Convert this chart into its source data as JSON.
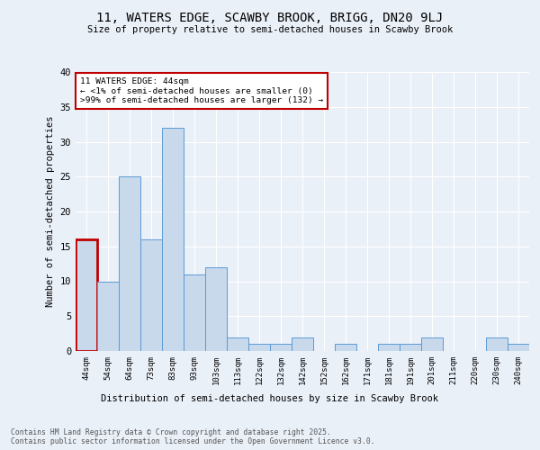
{
  "title_line1": "11, WATERS EDGE, SCAWBY BROOK, BRIGG, DN20 9LJ",
  "title_line2": "Size of property relative to semi-detached houses in Scawby Brook",
  "xlabel": "Distribution of semi-detached houses by size in Scawby Brook",
  "ylabel": "Number of semi-detached properties",
  "bar_color": "#c8d9ec",
  "bar_edge_color": "#5b9bd5",
  "highlight_color": "#c00000",
  "categories": [
    "44sqm",
    "54sqm",
    "64sqm",
    "73sqm",
    "83sqm",
    "93sqm",
    "103sqm",
    "113sqm",
    "122sqm",
    "132sqm",
    "142sqm",
    "152sqm",
    "162sqm",
    "171sqm",
    "181sqm",
    "191sqm",
    "201sqm",
    "211sqm",
    "220sqm",
    "230sqm",
    "240sqm"
  ],
  "values": [
    16,
    10,
    25,
    16,
    32,
    11,
    12,
    2,
    1,
    1,
    2,
    0,
    1,
    0,
    1,
    1,
    2,
    0,
    0,
    2,
    1
  ],
  "highlight_index": 0,
  "annotation_text": "11 WATERS EDGE: 44sqm\n← <1% of semi-detached houses are smaller (0)\n>99% of semi-detached houses are larger (132) →",
  "ylim": [
    0,
    40
  ],
  "yticks": [
    0,
    5,
    10,
    15,
    20,
    25,
    30,
    35,
    40
  ],
  "footnote": "Contains HM Land Registry data © Crown copyright and database right 2025.\nContains public sector information licensed under the Open Government Licence v3.0.",
  "background_color": "#eaf0f8",
  "plot_bg_color": "#eaf0f8",
  "grid_color": "#ffffff"
}
